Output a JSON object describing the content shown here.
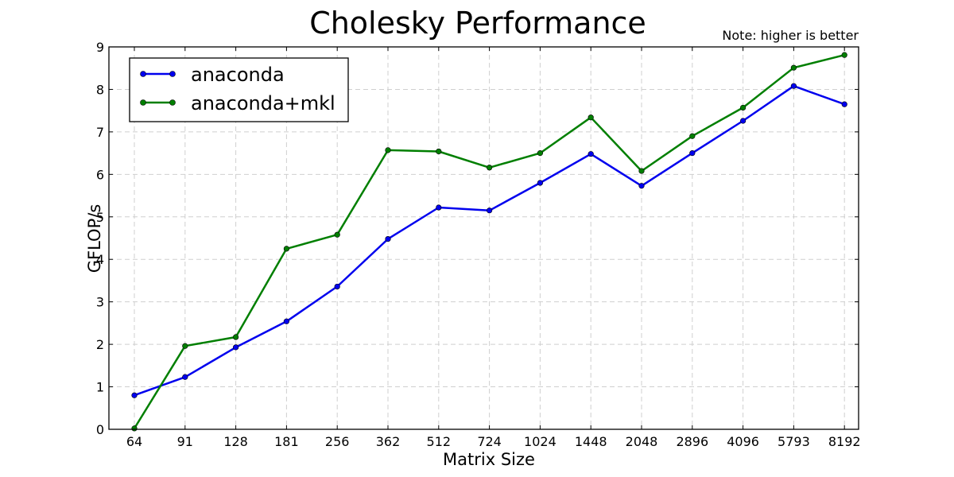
{
  "chart_data": {
    "type": "line",
    "title": "Cholesky Performance",
    "annotation": "Note: higher is better",
    "xlabel": "Matrix Size",
    "ylabel": "GFLOP/s",
    "categories": [
      "64",
      "91",
      "128",
      "181",
      "256",
      "362",
      "512",
      "724",
      "1024",
      "1448",
      "2048",
      "2896",
      "4096",
      "5793",
      "8192"
    ],
    "ylim": [
      0,
      9
    ],
    "yticks": [
      0,
      1,
      2,
      3,
      4,
      5,
      6,
      7,
      8,
      9
    ],
    "grid": true,
    "legend_position": "top-left",
    "series": [
      {
        "name": "anaconda",
        "color": "#0000ee",
        "values": [
          0.8,
          1.23,
          1.93,
          2.54,
          3.36,
          4.48,
          5.22,
          5.15,
          5.8,
          6.48,
          5.73,
          6.5,
          7.26,
          8.08,
          7.65
        ]
      },
      {
        "name": "anaconda+mkl",
        "color": "#007f00",
        "values": [
          0.02,
          1.96,
          2.17,
          4.25,
          4.58,
          6.57,
          6.54,
          6.16,
          6.5,
          7.34,
          6.08,
          6.9,
          7.57,
          8.51,
          8.81
        ]
      }
    ]
  }
}
